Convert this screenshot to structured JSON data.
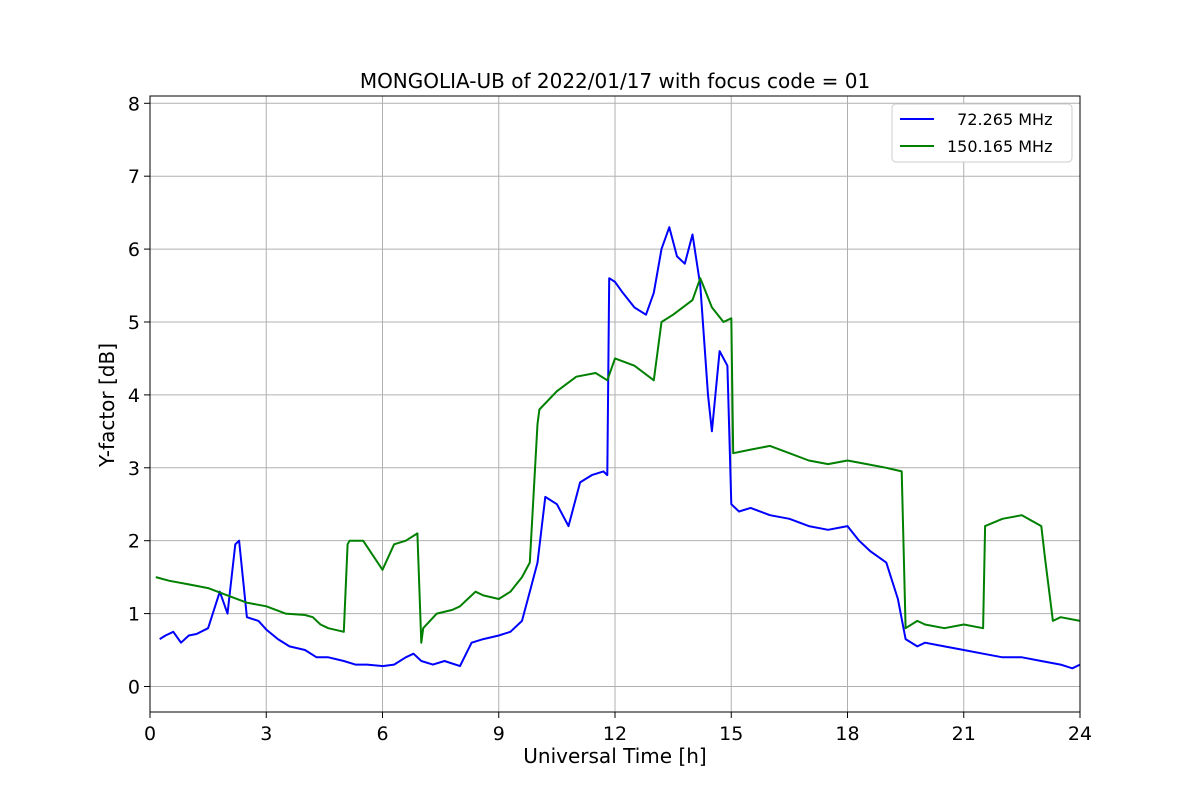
{
  "chart_data": {
    "type": "line",
    "title": "MONGOLIA-UB of 2022/01/17 with focus code = 01",
    "xlabel": "Universal Time [h]",
    "ylabel": "Y-factor [dB]",
    "xlim": [
      0,
      24
    ],
    "ylim": [
      -0.35,
      8.1
    ],
    "xticks": [
      0,
      3,
      6,
      9,
      12,
      15,
      18,
      21,
      24
    ],
    "yticks": [
      0,
      1,
      2,
      3,
      4,
      5,
      6,
      7,
      8
    ],
    "grid": true,
    "legend_position": "top-right",
    "series": [
      {
        "name": "  72.265 MHz",
        "color": "#0000ff",
        "x": [
          0.25,
          0.4,
          0.6,
          0.8,
          1.0,
          1.2,
          1.5,
          1.8,
          2.0,
          2.2,
          2.3,
          2.5,
          2.8,
          3.0,
          3.3,
          3.6,
          4.0,
          4.3,
          4.6,
          5.0,
          5.3,
          5.6,
          6.0,
          6.3,
          6.6,
          6.8,
          7.0,
          7.3,
          7.6,
          8.0,
          8.3,
          8.6,
          9.0,
          9.3,
          9.6,
          9.8,
          10.0,
          10.2,
          10.5,
          10.8,
          11.1,
          11.4,
          11.7,
          11.8,
          11.85,
          12.0,
          12.2,
          12.5,
          12.8,
          13.0,
          13.2,
          13.4,
          13.6,
          13.8,
          14.0,
          14.2,
          14.4,
          14.5,
          14.7,
          14.9,
          15.0,
          15.2,
          15.5,
          16.0,
          16.5,
          17.0,
          17.5,
          18.0,
          18.3,
          18.6,
          19.0,
          19.3,
          19.5,
          19.8,
          20.0,
          20.5,
          21.0,
          21.5,
          22.0,
          22.5,
          23.0,
          23.5,
          23.8,
          24.0
        ],
        "values": [
          0.65,
          0.7,
          0.75,
          0.6,
          0.7,
          0.72,
          0.8,
          1.3,
          1.0,
          1.95,
          2.0,
          0.95,
          0.9,
          0.78,
          0.65,
          0.55,
          0.5,
          0.4,
          0.4,
          0.35,
          0.3,
          0.3,
          0.28,
          0.3,
          0.4,
          0.45,
          0.35,
          0.3,
          0.35,
          0.28,
          0.6,
          0.65,
          0.7,
          0.75,
          0.9,
          1.3,
          1.7,
          2.6,
          2.5,
          2.2,
          2.8,
          2.9,
          2.95,
          2.9,
          5.6,
          5.55,
          5.4,
          5.2,
          5.1,
          5.4,
          6.0,
          6.3,
          5.9,
          5.8,
          6.2,
          5.5,
          4.0,
          3.5,
          4.6,
          4.4,
          2.5,
          2.4,
          2.45,
          2.35,
          2.3,
          2.2,
          2.15,
          2.2,
          2.0,
          1.85,
          1.7,
          1.2,
          0.65,
          0.55,
          0.6,
          0.55,
          0.5,
          0.45,
          0.4,
          0.4,
          0.35,
          0.3,
          0.25,
          0.3
        ]
      },
      {
        "name": "150.165 MHz",
        "color": "#008000",
        "x": [
          0.15,
          0.5,
          1.0,
          1.5,
          2.0,
          2.5,
          3.0,
          3.5,
          4.0,
          4.2,
          4.4,
          4.6,
          5.0,
          5.1,
          5.15,
          5.5,
          6.0,
          6.3,
          6.6,
          6.9,
          7.0,
          7.05,
          7.4,
          7.8,
          8.0,
          8.2,
          8.4,
          8.6,
          9.0,
          9.3,
          9.6,
          9.8,
          10.0,
          10.05,
          10.5,
          11.0,
          11.5,
          11.8,
          12.0,
          12.5,
          13.0,
          13.2,
          13.5,
          14.0,
          14.2,
          14.5,
          14.8,
          15.0,
          15.05,
          15.5,
          16.0,
          16.5,
          17.0,
          17.5,
          18.0,
          18.5,
          19.0,
          19.4,
          19.5,
          19.8,
          20.0,
          20.5,
          21.0,
          21.5,
          21.55,
          22.0,
          22.5,
          23.0,
          23.1,
          23.3,
          23.5,
          24.0
        ],
        "values": [
          1.5,
          1.45,
          1.4,
          1.35,
          1.25,
          1.15,
          1.1,
          1.0,
          0.98,
          0.95,
          0.85,
          0.8,
          0.75,
          1.95,
          2.0,
          2.0,
          1.6,
          1.95,
          2.0,
          2.1,
          0.6,
          0.8,
          1.0,
          1.05,
          1.1,
          1.2,
          1.3,
          1.25,
          1.2,
          1.3,
          1.5,
          1.7,
          3.6,
          3.8,
          4.05,
          4.25,
          4.3,
          4.2,
          4.5,
          4.4,
          4.2,
          5.0,
          5.1,
          5.3,
          5.6,
          5.2,
          5.0,
          5.05,
          3.2,
          3.25,
          3.3,
          3.2,
          3.1,
          3.05,
          3.1,
          3.05,
          3.0,
          2.95,
          0.8,
          0.9,
          0.85,
          0.8,
          0.85,
          0.8,
          2.2,
          2.3,
          2.35,
          2.2,
          1.75,
          0.9,
          0.95,
          0.9
        ]
      }
    ]
  }
}
